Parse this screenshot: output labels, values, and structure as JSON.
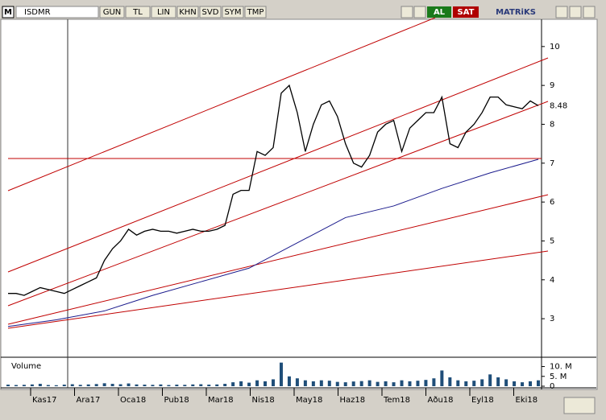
{
  "toolbar": {
    "logo": "M",
    "symbol": "ISDMR",
    "buttons": [
      "GUN",
      "TL",
      "LIN",
      "KHN",
      "SVD",
      "SYM",
      "TMP"
    ],
    "buy": "AL",
    "sell": "SAT",
    "brand": "MATRiKS"
  },
  "chart_data": {
    "type": "ohlc-line",
    "series": [
      {
        "name": "ISDMR",
        "color": "#000000",
        "values": [
          3.65,
          3.65,
          3.6,
          3.7,
          3.8,
          3.75,
          3.7,
          3.65,
          3.75,
          3.85,
          3.95,
          4.05,
          4.5,
          4.8,
          5.0,
          5.3,
          5.15,
          5.25,
          5.3,
          5.25,
          5.25,
          5.2,
          5.25,
          5.3,
          5.25,
          5.25,
          5.3,
          5.4,
          6.2,
          6.3,
          6.3,
          7.3,
          7.2,
          7.4,
          8.8,
          9.0,
          8.3,
          7.3,
          8.0,
          8.5,
          8.6,
          8.2,
          7.5,
          7.0,
          6.9,
          7.2,
          7.8,
          8.0,
          8.1,
          7.3,
          7.9,
          8.1,
          8.3,
          8.3,
          8.7,
          7.5,
          7.4,
          7.8,
          8.0,
          8.3,
          8.7,
          8.7,
          8.5,
          8.45,
          8.4,
          8.6,
          8.48
        ]
      },
      {
        "color": "#1a1a8c",
        "values": [
          2.8,
          2.97,
          3.2,
          3.6,
          3.95,
          4.3,
          4.95,
          5.6,
          5.9,
          6.35,
          6.75,
          7.1
        ]
      }
    ],
    "last_price": 8.48,
    "ylim": [
      2.05,
      10.7
    ],
    "yticks": [
      3,
      4,
      5,
      6,
      7,
      8,
      9,
      10
    ],
    "volume": {
      "label": "Volume",
      "color": "#1f4e79",
      "values": [
        0.8,
        0.6,
        0.7,
        0.9,
        1.2,
        0.6,
        0.5,
        0.8,
        1.0,
        0.7,
        0.9,
        1.1,
        1.5,
        1.2,
        1.0,
        1.4,
        0.9,
        0.8,
        0.7,
        0.9,
        0.6,
        0.8,
        0.7,
        0.9,
        1.0,
        0.8,
        0.9,
        1.2,
        2.0,
        2.5,
        1.8,
        3.0,
        2.5,
        3.5,
        12,
        5,
        4,
        3,
        2.5,
        3,
        2.8,
        2.2,
        2,
        2.4,
        2.6,
        3,
        2.2,
        2.5,
        2,
        3,
        2.5,
        2.8,
        3.2,
        4,
        8,
        4.5,
        3,
        2.5,
        2.8,
        3.5,
        6,
        4.5,
        3.5,
        2.5,
        2,
        2.5,
        3
      ],
      "ylim": [
        0,
        13.5
      ],
      "yticks": [
        {
          "value": 10,
          "label": "10. M"
        },
        {
          "value": 5,
          "label": "5. M"
        },
        0
      ]
    },
    "months": [
      "Kas17",
      "Ara17",
      "Oca18",
      "Pub18",
      "Mar18",
      "Nis18",
      "May18",
      "Haz18",
      "Tem18",
      "Aðu18",
      "Eyl18",
      "Eki18"
    ]
  }
}
